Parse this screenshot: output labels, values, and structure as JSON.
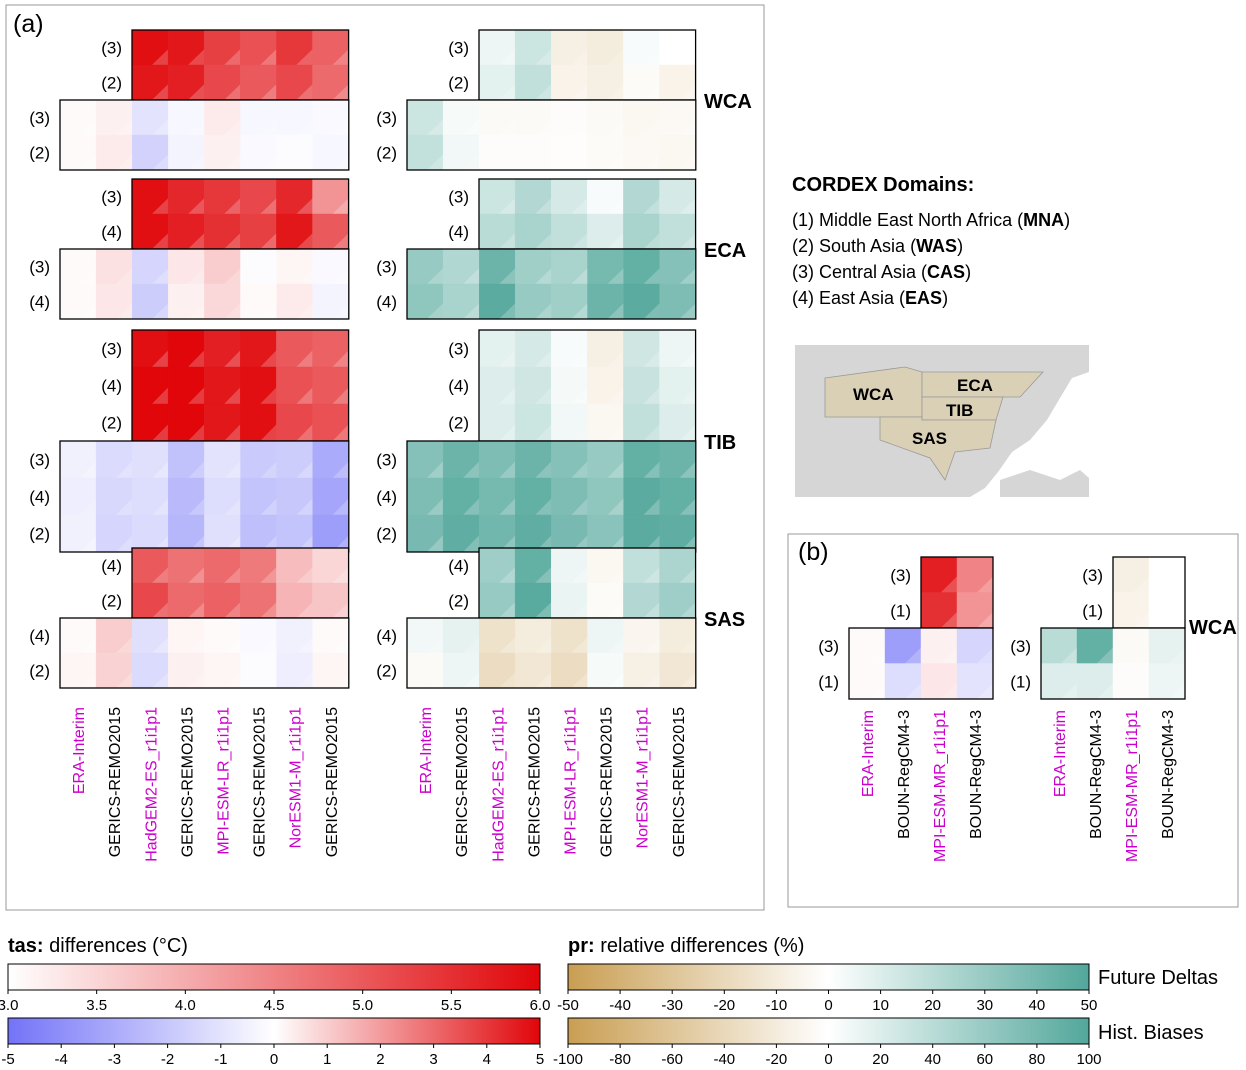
{
  "panel_a_label": "(a)",
  "panel_b_label": "(b)",
  "domains_legend": {
    "title": "CORDEX Domains:",
    "items": [
      {
        "num": "(1)",
        "name": "Middle East North Africa",
        "abbr": "MNA"
      },
      {
        "num": "(2)",
        "name": "South Asia",
        "abbr": "WAS"
      },
      {
        "num": "(3)",
        "name": "Central Asia",
        "abbr": "CAS"
      },
      {
        "num": "(4)",
        "name": "East Asia",
        "abbr": "EAS"
      }
    ]
  },
  "map": {
    "labels": [
      "WCA",
      "ECA",
      "TIB",
      "SAS"
    ],
    "land_color": "#d6d6d6",
    "region_color": "#d9d0b6"
  },
  "colorbars": {
    "tas_title_bold": "tas:",
    "tas_title_rest": " differences (°C)",
    "pr_title_bold": "pr:",
    "pr_title_rest": " relative differences (%)",
    "future_label": "Future Deltas",
    "hist_label": "Hist. Biases",
    "tas_future_ticks": [
      "3.0",
      "3.5",
      "4.0",
      "4.5",
      "5.0",
      "5.5",
      "6.0"
    ],
    "tas_hist_ticks": [
      "-5",
      "-4",
      "-3",
      "-2",
      "-1",
      "0",
      "1",
      "2",
      "3",
      "4",
      "5"
    ],
    "pr_future_ticks": [
      "-50",
      "-40",
      "-30",
      "-20",
      "-10",
      "0",
      "10",
      "20",
      "30",
      "40",
      "50"
    ],
    "pr_hist_ticks": [
      "-100",
      "-80",
      "-60",
      "-40",
      "-20",
      "0",
      "20",
      "40",
      "60",
      "80",
      "100"
    ],
    "colors": {
      "red": "#e0060a",
      "blue": "#7373f8",
      "teal": "#52a79b",
      "brown": "#c99e52"
    }
  },
  "chart_data": [
    {
      "type": "heatmap",
      "panel": "(a)",
      "columns": [
        {
          "label": "ERA-Interim",
          "color": "#cc00cc"
        },
        {
          "label": "GERICS-REMO2015",
          "color": "#000000"
        },
        {
          "label": "HadGEM2-ES_r1i1p1",
          "color": "#cc00cc"
        },
        {
          "label": "GERICS-REMO2015",
          "color": "#000000"
        },
        {
          "label": "MPI-ESM-LR_r1i1p1",
          "color": "#cc00cc"
        },
        {
          "label": "GERICS-REMO2015",
          "color": "#000000"
        },
        {
          "label": "NorESM1-M_r1i1p1",
          "color": "#cc00cc"
        },
        {
          "label": "GERICS-REMO2015",
          "color": "#000000"
        }
      ],
      "regions": [
        {
          "name": "WCA",
          "rows": [
            "(3)",
            "(2)"
          ],
          "tas_future": [
            [
              5.9,
              5.8,
              5.3,
              5.1,
              5.4,
              4.9
            ],
            [
              5.8,
              5.7,
              5.2,
              5.0,
              5.2,
              4.8
            ]
          ],
          "tas_hist": [
            [
              0.1,
              0.3,
              -1.0,
              -0.3,
              0.4,
              -0.3,
              -0.3,
              -0.2
            ],
            [
              0.1,
              0.4,
              -1.6,
              -0.4,
              0.3,
              -0.2,
              -0.1,
              -0.3
            ]
          ],
          "pr_future": [
            [
              5,
              15,
              -8,
              -10,
              2,
              0
            ],
            [
              8,
              18,
              -6,
              -8,
              -2,
              -6
            ]
          ],
          "pr_hist": [
            [
              30,
              5,
              -5,
              -5,
              -3,
              -5,
              -8,
              -6
            ],
            [
              35,
              8,
              -3,
              -3,
              -2,
              -4,
              -6,
              -8
            ]
          ]
        },
        {
          "name": "ECA",
          "rows": [
            "(3)",
            "(4)"
          ],
          "tas_future": [
            [
              5.9,
              5.6,
              5.4,
              5.2,
              5.6,
              4.3
            ],
            [
              5.9,
              5.7,
              5.5,
              5.3,
              5.8,
              5.0
            ]
          ],
          "tas_hist": [
            [
              0.1,
              0.6,
              -1.5,
              0.5,
              1.0,
              -0.1,
              0.2,
              -0.2
            ],
            [
              0.1,
              0.5,
              -1.8,
              0.3,
              0.8,
              0.1,
              0.4,
              -0.4
            ]
          ],
          "pr_future": [
            [
              15,
              22,
              12,
              2,
              22,
              12
            ],
            [
              20,
              25,
              18,
              10,
              25,
              18
            ]
          ],
          "pr_hist": [
            [
              60,
              45,
              85,
              55,
              50,
              80,
              90,
              70
            ],
            [
              65,
              50,
              95,
              60,
              55,
              85,
              95,
              75
            ]
          ]
        },
        {
          "name": "TIB",
          "rows": [
            "(3)",
            "(4)",
            "(2)"
          ],
          "tas_future": [
            [
              5.9,
              6.0,
              5.7,
              5.8,
              5.0,
              4.9
            ],
            [
              6.0,
              6.0,
              5.8,
              5.9,
              5.1,
              5.0
            ],
            [
              6.0,
              6.0,
              5.8,
              5.9,
              5.2,
              5.1
            ]
          ],
          "tas_hist": [
            [
              -0.5,
              -1.3,
              -1.1,
              -2.2,
              -1.0,
              -1.9,
              -1.8,
              -3.0
            ],
            [
              -0.6,
              -1.4,
              -1.2,
              -2.5,
              -1.2,
              -2.1,
              -2.0,
              -3.2
            ],
            [
              -0.5,
              -1.5,
              -1.3,
              -2.6,
              -1.1,
              -2.3,
              -2.1,
              -3.5
            ]
          ],
          "pr_future": [
            [
              8,
              12,
              2,
              -8,
              14,
              5
            ],
            [
              10,
              14,
              3,
              -6,
              16,
              8
            ],
            [
              10,
              15,
              4,
              -4,
              18,
              10
            ]
          ],
          "pr_hist": [
            [
              70,
              85,
              75,
              85,
              70,
              60,
              90,
              85
            ],
            [
              75,
              90,
              80,
              90,
              75,
              65,
              95,
              90
            ],
            [
              78,
              92,
              82,
              92,
              78,
              68,
              95,
              92
            ]
          ]
        },
        {
          "name": "SAS",
          "rows": [
            "(4)",
            "(2)"
          ],
          "tas_future": [
            [
              5.0,
              4.7,
              4.8,
              4.6,
              3.8,
              3.5
            ],
            [
              5.2,
              4.8,
              4.9,
              4.7,
              3.9,
              3.7
            ]
          ],
          "tas_hist": [
            [
              0.1,
              1.0,
              -1.1,
              0.2,
              0.1,
              -0.2,
              -0.5,
              0.1
            ],
            [
              0.2,
              0.9,
              -1.3,
              0.3,
              0.2,
              -0.1,
              -0.6,
              0.2
            ]
          ],
          "pr_future": [
            [
              28,
              45,
              5,
              -4,
              18,
              24
            ],
            [
              30,
              48,
              6,
              -2,
              22,
              28
            ]
          ],
          "pr_hist": [
            [
              8,
              15,
              -30,
              -20,
              -30,
              10,
              -10,
              -20
            ],
            [
              -5,
              10,
              -35,
              -25,
              -35,
              5,
              -15,
              -25
            ]
          ]
        }
      ]
    },
    {
      "type": "heatmap",
      "panel": "(b)",
      "columns": [
        {
          "label": "ERA-Interim",
          "color": "#cc00cc"
        },
        {
          "label": "BOUN-RegCM4-3",
          "color": "#000000"
        },
        {
          "label": "MPI-ESM-MR_r1i1p1",
          "color": "#cc00cc"
        },
        {
          "label": "BOUN-RegCM4-3",
          "color": "#000000"
        }
      ],
      "regions": [
        {
          "name": "WCA",
          "rows": [
            "(3)",
            "(1)"
          ],
          "tas_future": [
            [
              5.7,
              4.5
            ],
            [
              5.5,
              4.3
            ]
          ],
          "tas_hist": [
            [
              0.1,
              -3.5,
              0.3,
              -1.5
            ],
            [
              0.1,
              -1.2,
              0.5,
              -1.0
            ]
          ],
          "pr_future": [
            [
              -8,
              0
            ],
            [
              -6,
              0
            ]
          ],
          "pr_hist": [
            [
              40,
              90,
              -5,
              15
            ],
            [
              20,
              20,
              -3,
              10
            ]
          ]
        }
      ]
    }
  ]
}
